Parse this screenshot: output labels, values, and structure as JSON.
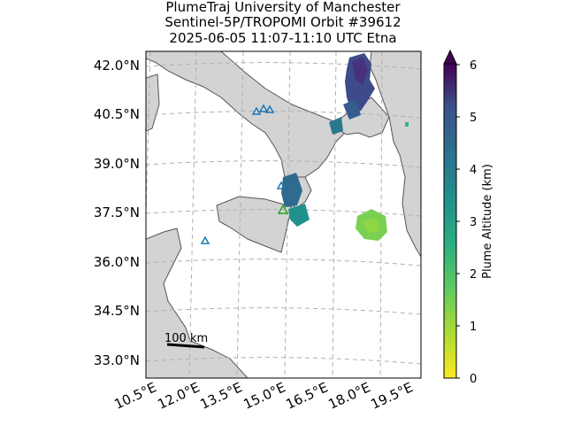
{
  "header": {
    "line1": "PlumeTraj    University of Manchester",
    "line2": "Sentinel-5P/TROPOMI Orbit #39612",
    "line3": "2025-06-05    11:07-11:10 UTC   Etna"
  },
  "map": {
    "lat_labels": [
      "42.0°N",
      "40.5°N",
      "39.0°N",
      "37.5°N",
      "36.0°N",
      "34.5°N",
      "33.0°N"
    ],
    "lon_labels": [
      "10.5°E",
      "12.0°E",
      "13.5°E",
      "15.0°E",
      "16.5°E",
      "18.0°E",
      "19.5°E"
    ],
    "scale_bar_label": "100 km",
    "land_color": "#d3d3d3",
    "coast_color": "#555555",
    "grid_style": "dashed"
  },
  "colorbar": {
    "label": "Plume Altitude (km)",
    "ticks": [
      "0",
      "1",
      "2",
      "3",
      "4",
      "5",
      "6"
    ],
    "range_km": [
      0,
      6
    ],
    "colormap": "viridis_r"
  },
  "markers": [
    {
      "type": "volcano",
      "name": "Etna",
      "symbol": "triangle",
      "color": "#2ca02c"
    },
    {
      "type": "volcano",
      "symbol": "triangle",
      "color": "#1f77b4"
    },
    {
      "type": "volcano",
      "symbol": "triangle",
      "color": "#1f77b4"
    },
    {
      "type": "volcano",
      "symbol": "triangle",
      "color": "#1f77b4"
    },
    {
      "type": "volcano",
      "symbol": "triangle",
      "color": "#1f77b4"
    },
    {
      "type": "volcano",
      "symbol": "triangle",
      "color": "#1f77b4"
    }
  ]
}
